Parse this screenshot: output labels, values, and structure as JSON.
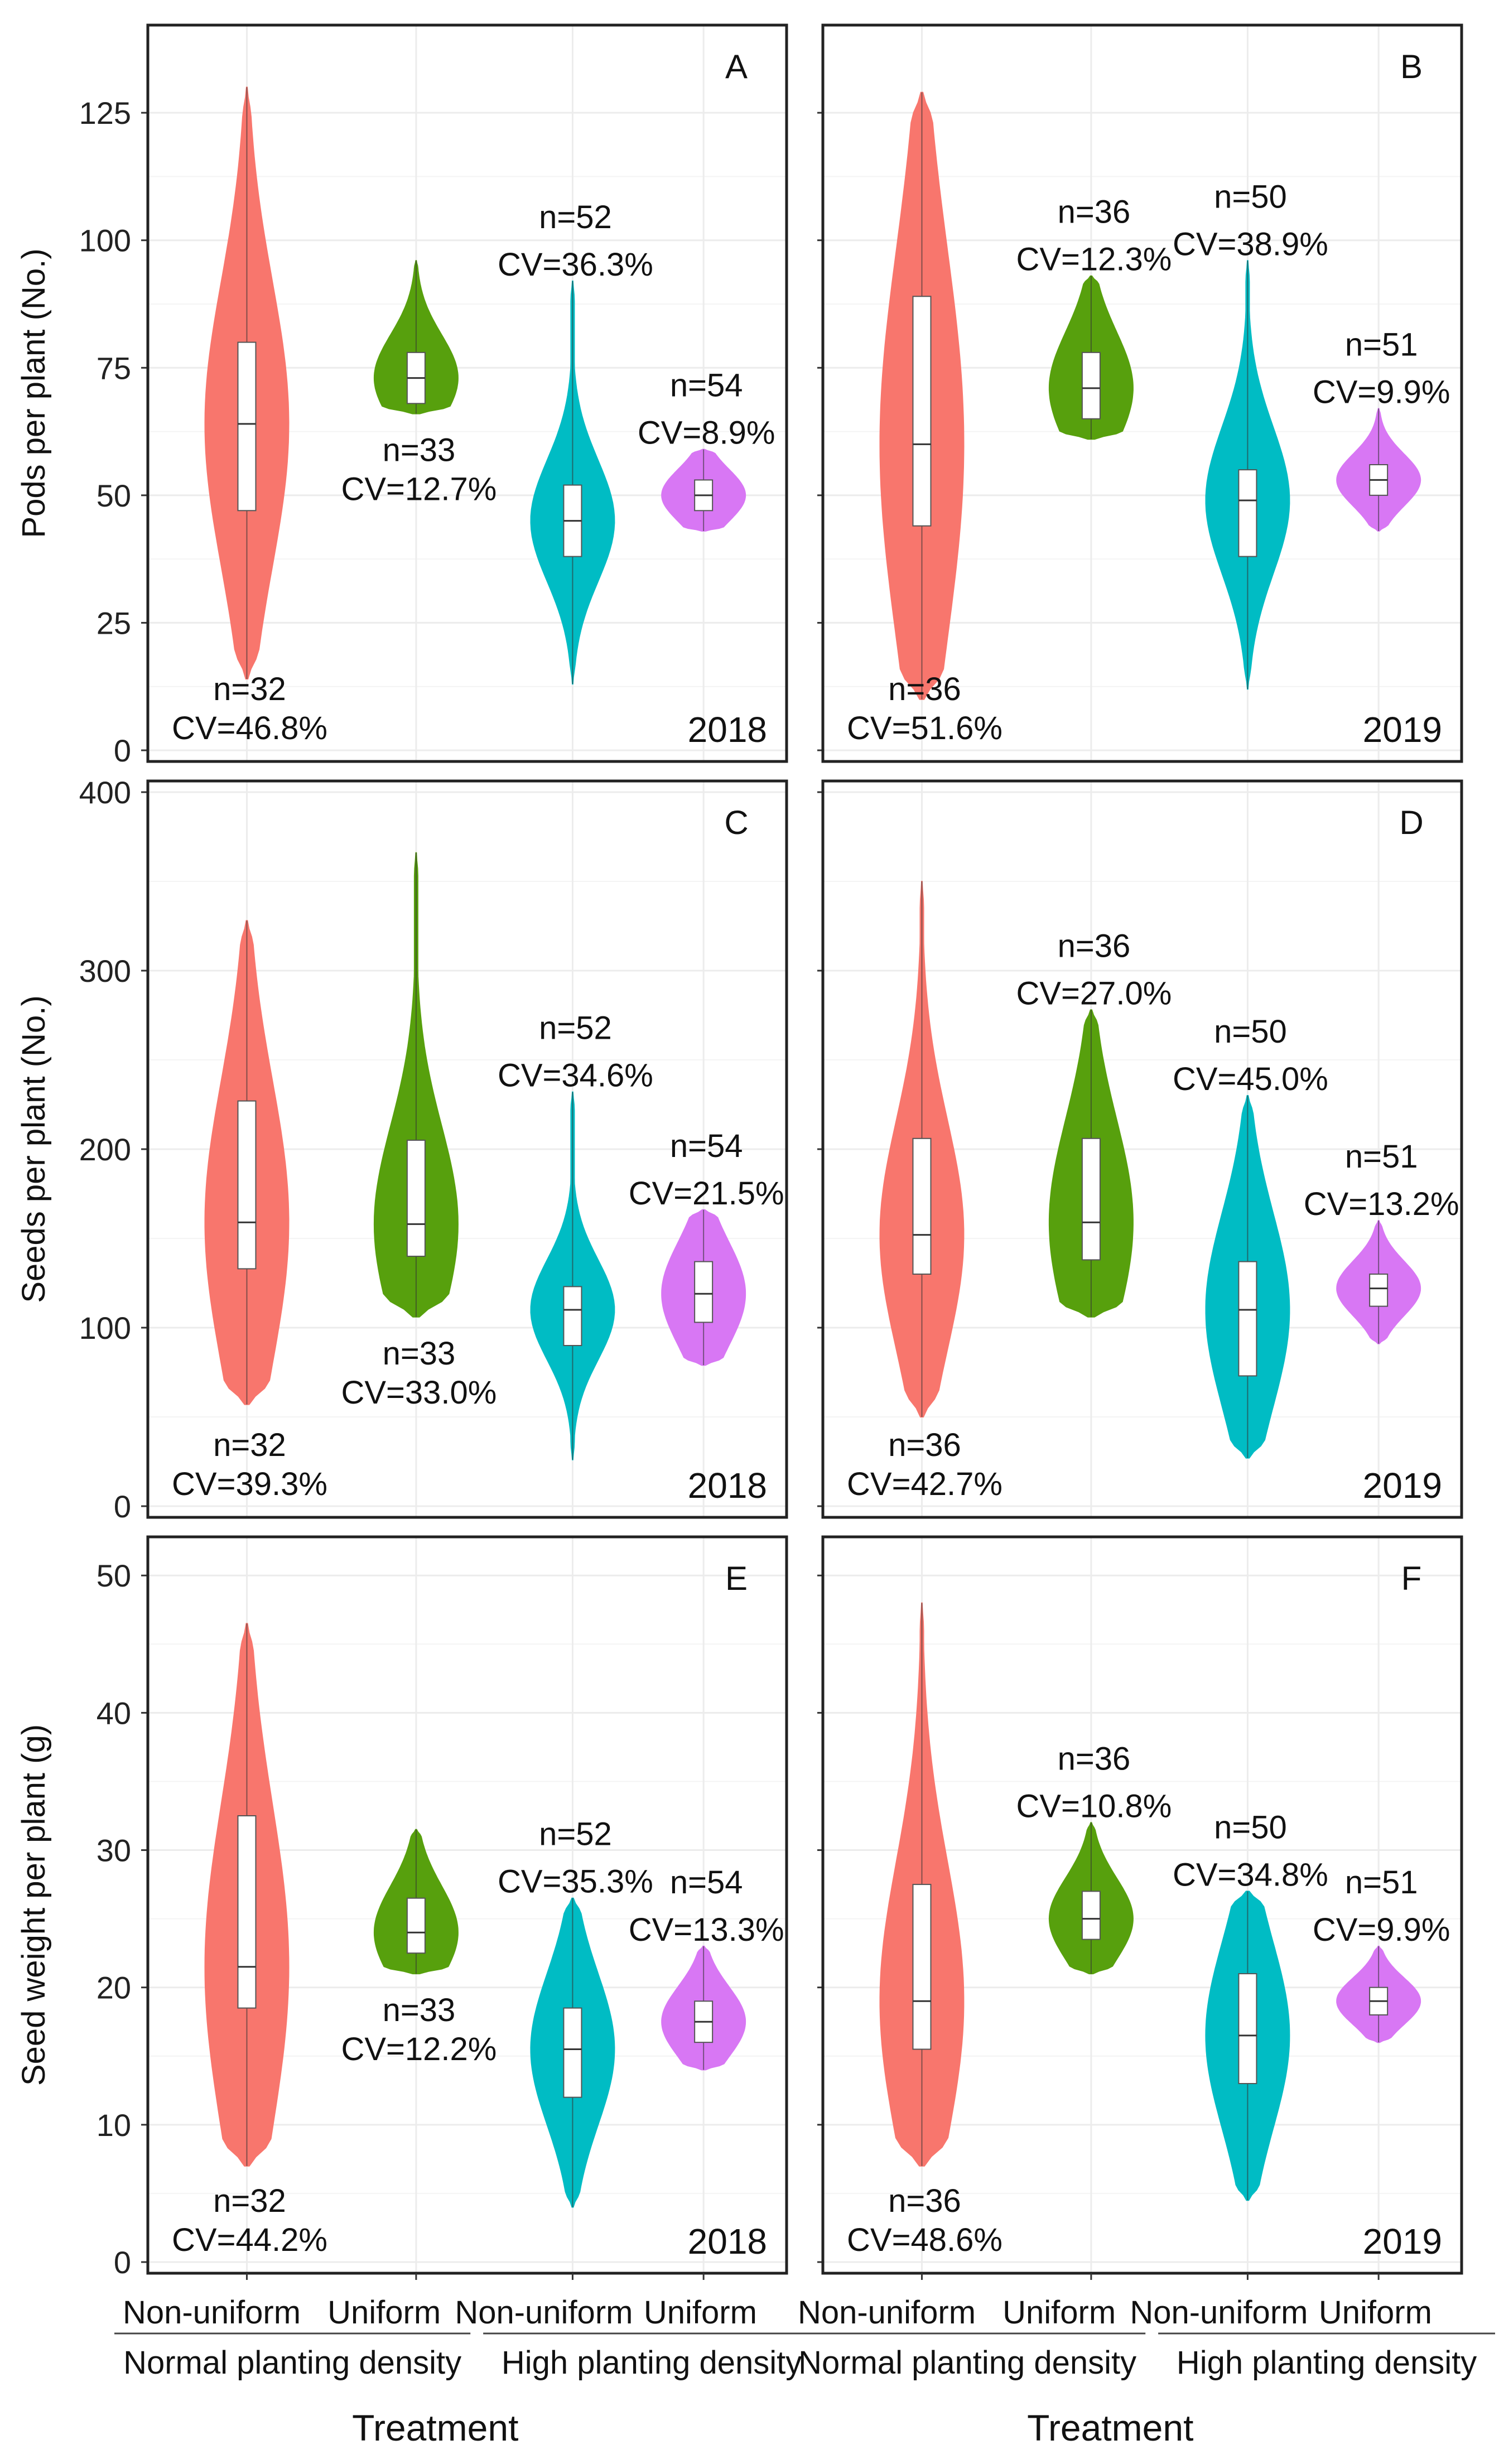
{
  "chart_data": {
    "type": "violin",
    "figure_x_title": "Treatment",
    "categories": [
      "Non-uniform",
      "Uniform",
      "Non-uniform",
      "Uniform"
    ],
    "groups": [
      "Normal planting density",
      "High planting density"
    ],
    "colors": [
      "#f8766d",
      "#57a00d",
      "#00bcc4",
      "#d877f4"
    ],
    "rows": [
      {
        "ylabel": "Pods per plant (No.)",
        "ylim": [
          0,
          140
        ],
        "yticks": [
          0,
          25,
          50,
          75,
          100,
          125
        ]
      },
      {
        "ylabel": "Seeds per plant (No.)",
        "ylim": [
          0,
          400
        ],
        "yticks": [
          0,
          100,
          200,
          300,
          400
        ]
      },
      {
        "ylabel": "Seed weight per plant (g)",
        "ylim": [
          0,
          52
        ],
        "yticks": [
          0,
          10,
          20,
          30,
          40,
          50
        ]
      }
    ],
    "panels": [
      {
        "id": "A",
        "year": "2018",
        "series": [
          {
            "min": 14,
            "q1": 47,
            "median": 64,
            "q3": 80,
            "max": 130,
            "n": "n=32",
            "cv": "CV=46.8%",
            "label_pos": "bottom"
          },
          {
            "min": 66,
            "q1": 68,
            "median": 73,
            "q3": 78,
            "max": 96,
            "n": "n=33",
            "cv": "CV=12.7%",
            "label_pos": "bottom"
          },
          {
            "min": 13,
            "q1": 38,
            "median": 45,
            "q3": 52,
            "max": 92,
            "n": "n=52",
            "cv": "CV=36.3%",
            "label_pos": "top"
          },
          {
            "min": 43,
            "q1": 47,
            "median": 50,
            "q3": 53,
            "max": 59,
            "n": "n=54",
            "cv": "CV=8.9%",
            "label_pos": "top"
          }
        ]
      },
      {
        "id": "B",
        "year": "2019",
        "series": [
          {
            "min": 10,
            "q1": 44,
            "median": 60,
            "q3": 89,
            "max": 129,
            "n": "n=36",
            "cv": "CV=51.6%",
            "label_pos": "bottom"
          },
          {
            "min": 61,
            "q1": 65,
            "median": 71,
            "q3": 78,
            "max": 93,
            "n": "n=36",
            "cv": "CV=12.3%",
            "label_pos": "top"
          },
          {
            "min": 12,
            "q1": 38,
            "median": 49,
            "q3": 55,
            "max": 96,
            "n": "n=50",
            "cv": "CV=38.9%",
            "label_pos": "top"
          },
          {
            "min": 43,
            "q1": 50,
            "median": 53,
            "q3": 56,
            "max": 67,
            "n": "n=51",
            "cv": "CV=9.9%",
            "label_pos": "top"
          }
        ]
      },
      {
        "id": "C",
        "year": "2018",
        "series": [
          {
            "min": 57,
            "q1": 133,
            "median": 159,
            "q3": 227,
            "max": 328,
            "n": "n=32",
            "cv": "CV=39.3%",
            "label_pos": "bottom"
          },
          {
            "min": 106,
            "q1": 140,
            "median": 158,
            "q3": 205,
            "max": 366,
            "n": "n=33",
            "cv": "CV=33.0%",
            "label_pos": "bottom"
          },
          {
            "min": 26,
            "q1": 90,
            "median": 110,
            "q3": 123,
            "max": 232,
            "n": "n=52",
            "cv": "CV=34.6%",
            "label_pos": "top"
          },
          {
            "min": 79,
            "q1": 103,
            "median": 119,
            "q3": 137,
            "max": 166,
            "n": "n=54",
            "cv": "CV=21.5%",
            "label_pos": "top"
          }
        ]
      },
      {
        "id": "D",
        "year": "2019",
        "series": [
          {
            "min": 50,
            "q1": 130,
            "median": 152,
            "q3": 206,
            "max": 350,
            "n": "n=36",
            "cv": "CV=42.7%",
            "label_pos": "bottom"
          },
          {
            "min": 106,
            "q1": 138,
            "median": 159,
            "q3": 206,
            "max": 278,
            "n": "n=36",
            "cv": "CV=27.0%",
            "label_pos": "top"
          },
          {
            "min": 27,
            "q1": 73,
            "median": 110,
            "q3": 137,
            "max": 230,
            "n": "n=50",
            "cv": "CV=45.0%",
            "label_pos": "top"
          },
          {
            "min": 91,
            "q1": 112,
            "median": 122,
            "q3": 130,
            "max": 160,
            "n": "n=51",
            "cv": "CV=13.2%",
            "label_pos": "top"
          }
        ]
      },
      {
        "id": "E",
        "year": "2018",
        "series": [
          {
            "min": 7,
            "q1": 18.5,
            "median": 21.5,
            "q3": 32.5,
            "max": 46.5,
            "n": "n=32",
            "cv": "CV=44.2%",
            "label_pos": "bottom"
          },
          {
            "min": 21,
            "q1": 22.5,
            "median": 24,
            "q3": 26.5,
            "max": 31.5,
            "n": "n=33",
            "cv": "CV=12.2%",
            "label_pos": "bottom"
          },
          {
            "min": 4,
            "q1": 12,
            "median": 15.5,
            "q3": 18.5,
            "max": 26.5,
            "n": "n=52",
            "cv": "CV=35.3%",
            "label_pos": "top"
          },
          {
            "min": 14,
            "q1": 16,
            "median": 17.5,
            "q3": 19,
            "max": 23,
            "n": "n=54",
            "cv": "CV=13.3%",
            "label_pos": "top"
          }
        ]
      },
      {
        "id": "F",
        "year": "2019",
        "series": [
          {
            "min": 7,
            "q1": 15.5,
            "median": 19,
            "q3": 27.5,
            "max": 48,
            "n": "n=36",
            "cv": "CV=48.6%",
            "label_pos": "bottom"
          },
          {
            "min": 21,
            "q1": 23.5,
            "median": 25,
            "q3": 27,
            "max": 32,
            "n": "n=36",
            "cv": "CV=10.8%",
            "label_pos": "top"
          },
          {
            "min": 4.5,
            "q1": 13,
            "median": 16.5,
            "q3": 21,
            "max": 27,
            "n": "n=50",
            "cv": "CV=34.8%",
            "label_pos": "top"
          },
          {
            "min": 16,
            "q1": 18,
            "median": 19,
            "q3": 20,
            "max": 23,
            "n": "n=51",
            "cv": "CV=9.9%",
            "label_pos": "top"
          }
        ]
      }
    ]
  }
}
